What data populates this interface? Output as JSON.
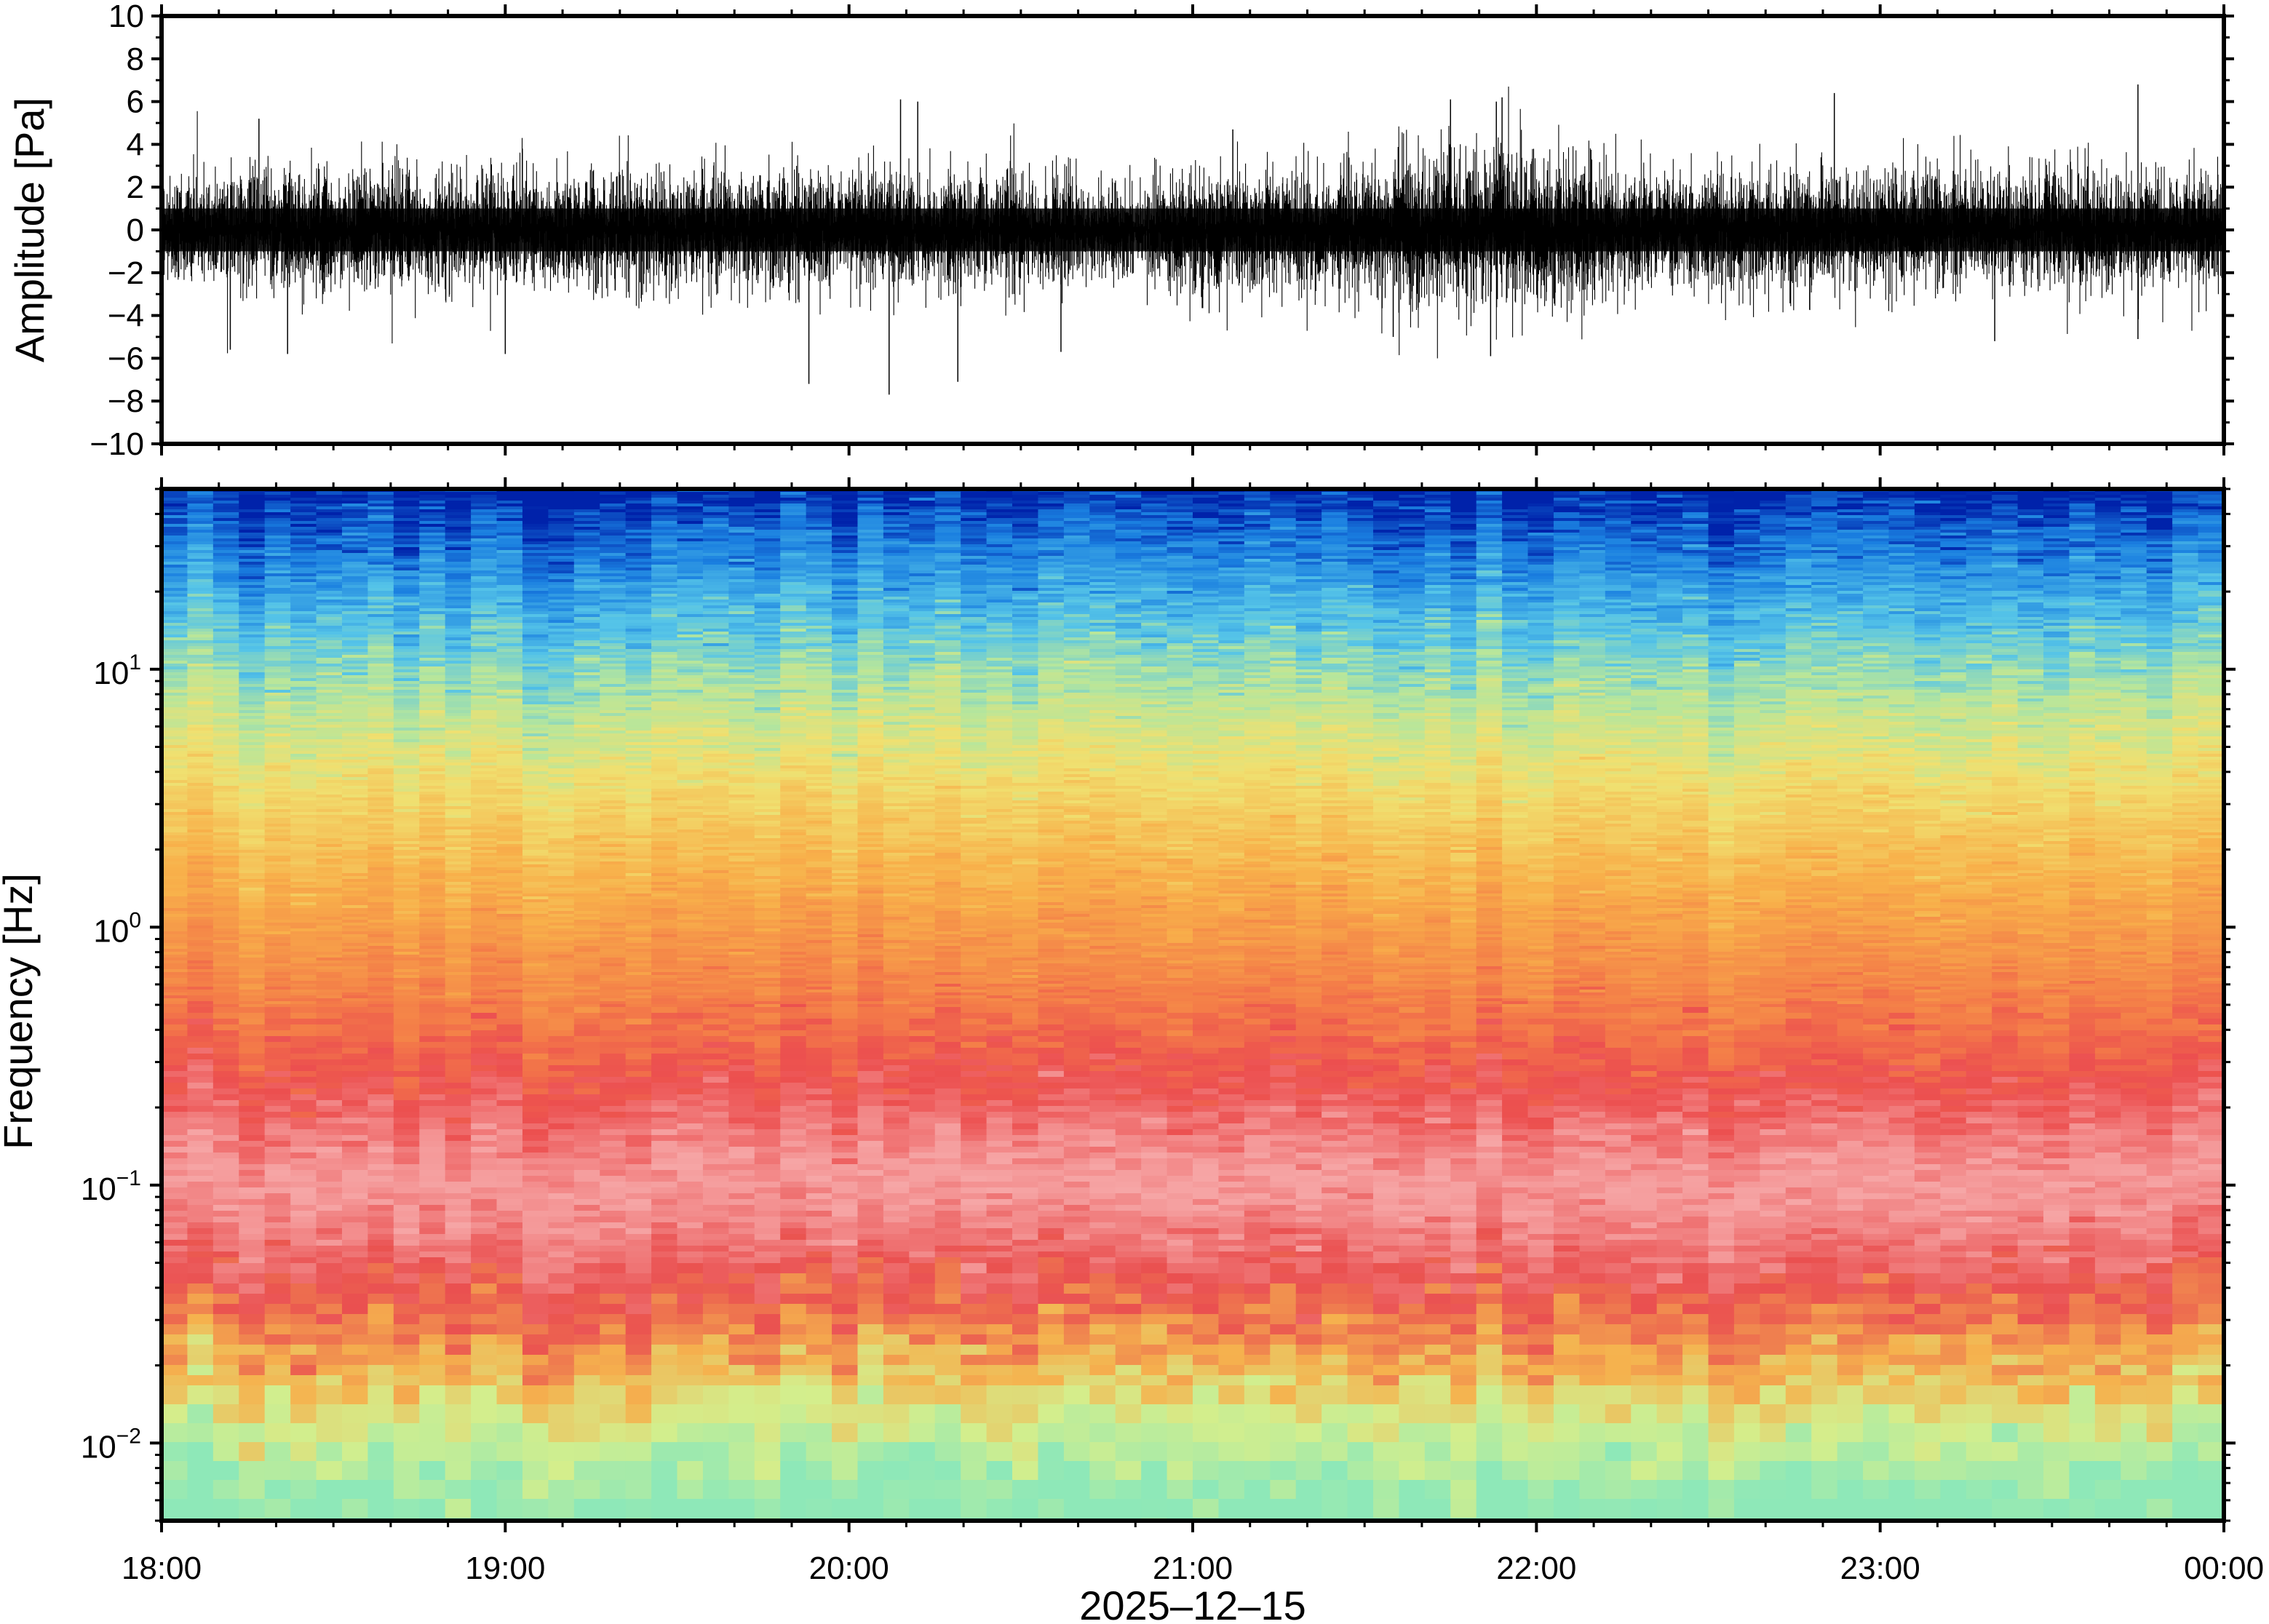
{
  "chart_data": [
    {
      "type": "line",
      "panel": "waveform",
      "ylabel": "Amplitude [Pa]",
      "ylim": [
        -10,
        10
      ],
      "yticks": [
        10,
        8,
        6,
        4,
        2,
        0,
        -2,
        -4,
        -6,
        -8,
        -10
      ],
      "ytick_labels": [
        "10",
        "8",
        "6",
        "4",
        "2",
        "0",
        "−2",
        "−4",
        "−6",
        "−8",
        "−10"
      ],
      "typical_envelope_pa": 2.5,
      "spikes": [
        {
          "time": "18:12",
          "value": -5.6
        },
        {
          "time": "18:17",
          "value": 5.2
        },
        {
          "time": "18:22",
          "value": -5.8
        },
        {
          "time": "19:00",
          "value": -5.8
        },
        {
          "time": "19:53",
          "value": -7.2
        },
        {
          "time": "20:07",
          "value": -7.7
        },
        {
          "time": "20:09",
          "value": 6.1
        },
        {
          "time": "20:12",
          "value": 6.0
        },
        {
          "time": "20:19",
          "value": -7.1
        },
        {
          "time": "20:37",
          "value": -5.7
        },
        {
          "time": "21:07",
          "value": 4.7
        },
        {
          "time": "21:35",
          "value": -5.0
        },
        {
          "time": "21:45",
          "value": 6.1
        },
        {
          "time": "21:52",
          "value": -5.9
        },
        {
          "time": "21:53",
          "value": 6.0
        },
        {
          "time": "21:54",
          "value": 6.2
        },
        {
          "time": "22:52",
          "value": 6.4
        },
        {
          "time": "23:20",
          "value": -5.2
        },
        {
          "time": "23:45",
          "value": 6.8
        },
        {
          "time": "23:45",
          "value": -5.1
        }
      ]
    },
    {
      "type": "heatmap",
      "panel": "spectrogram",
      "ylabel": "Frequency [Hz]",
      "xlabel": "2025–12–15",
      "yscale": "log",
      "ylim": [
        0.005,
        50
      ],
      "yticks": [
        {
          "value": 10,
          "base": "10",
          "exp": "1"
        },
        {
          "value": 1,
          "base": "10",
          "exp": "0"
        },
        {
          "value": 0.1,
          "base": "10",
          "exp": "−1"
        },
        {
          "value": 0.01,
          "base": "10",
          "exp": "−2"
        }
      ],
      "xlim": [
        "18:00",
        "00:00"
      ],
      "xtick_labels": [
        "18:00",
        "19:00",
        "20:00",
        "21:00",
        "22:00",
        "23:00",
        "00:00"
      ],
      "colormap_by_frequency": [
        {
          "freq_hz": 50,
          "color": "#0022aa"
        },
        {
          "freq_hz": 30,
          "color": "#1a7fe0"
        },
        {
          "freq_hz": 15,
          "color": "#55c4e8"
        },
        {
          "freq_hz": 8,
          "color": "#b6e69c"
        },
        {
          "freq_hz": 4,
          "color": "#f0e070"
        },
        {
          "freq_hz": 1.5,
          "color": "#f8b04a"
        },
        {
          "freq_hz": 0.5,
          "color": "#f47e48"
        },
        {
          "freq_hz": 0.25,
          "color": "#ec4f4f"
        },
        {
          "freq_hz": 0.1,
          "color": "#f6a6a6"
        },
        {
          "freq_hz": 0.04,
          "color": "#ea5050"
        },
        {
          "freq_hz": 0.02,
          "color": "#f5b24e"
        },
        {
          "freq_hz": 0.012,
          "color": "#d4ee8c"
        },
        {
          "freq_hz": 0.006,
          "color": "#8ee8b8"
        }
      ]
    }
  ]
}
